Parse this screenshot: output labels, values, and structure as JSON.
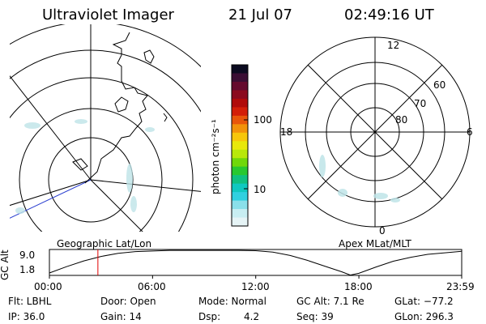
{
  "header": {
    "title": "Ultraviolet Imager",
    "date": "21 Jul 07",
    "time": "02:49:16 UT"
  },
  "colorbar": {
    "label": "photon cm⁻²s⁻¹",
    "ticks": [
      "100",
      "10"
    ],
    "colors": [
      "#0b0b20",
      "#3a0e34",
      "#650a2e",
      "#8b0a1e",
      "#b00a0a",
      "#d31e08",
      "#e8560a",
      "#f2920a",
      "#f7c60a",
      "#e8e80a",
      "#b8e80a",
      "#70d80a",
      "#28c830",
      "#10c080",
      "#10c8c0",
      "#30d0e0",
      "#8ae0ea",
      "#c8eef2",
      "#e6f4f6"
    ]
  },
  "geo_map": {
    "caption": "Geographic Lat/Lon"
  },
  "polar_plot": {
    "caption": "Apex MLat/MLT",
    "mlt_labels": {
      "top": "12",
      "left": "18",
      "right": "6",
      "bottom": "0"
    },
    "lat_labels": [
      "60",
      "70",
      "80"
    ]
  },
  "altitude_strip": {
    "ylabel": "GC Alt",
    "y_ticks": [
      "9.0",
      "1.8"
    ],
    "x_ticks": [
      "00:00",
      "06:00",
      "12:00",
      "18:00",
      "23:59"
    ],
    "marker_color": "#e00000",
    "curve": [
      [
        0.0,
        1.8
      ],
      [
        1.0,
        3.9
      ],
      [
        2.0,
        5.8
      ],
      [
        3.0,
        7.3
      ],
      [
        4.0,
        8.3
      ],
      [
        5.0,
        8.9
      ],
      [
        6.0,
        9.1
      ],
      [
        7.0,
        9.3
      ],
      [
        8.0,
        9.3
      ],
      [
        9.0,
        9.3
      ],
      [
        10.0,
        9.3
      ],
      [
        11.0,
        9.3
      ],
      [
        12.0,
        9.2
      ],
      [
        13.0,
        8.7
      ],
      [
        14.0,
        7.6
      ],
      [
        15.0,
        6.0
      ],
      [
        16.0,
        4.1
      ],
      [
        17.0,
        2.2
      ],
      [
        17.5,
        1.1
      ],
      [
        18.0,
        1.7
      ],
      [
        19.0,
        3.8
      ],
      [
        20.0,
        5.7
      ],
      [
        21.0,
        7.0
      ],
      [
        22.0,
        8.0
      ],
      [
        23.0,
        8.5
      ],
      [
        23.98,
        9.0
      ]
    ],
    "marker_time": 2.82,
    "x_range": [
      0,
      23.98
    ],
    "y_range": [
      1.0,
      9.6
    ]
  },
  "info": {
    "flt": "Flt: LBHL",
    "ip": "IP: 36.0",
    "door": "Door: Open",
    "gain": "Gain: 14",
    "mode": "Mode: Normal",
    "dsp": "Dsp:",
    "dsp_val": "4.2",
    "gc_alt": "GC Alt: 7.1 Re",
    "seq": "Seq: 39",
    "glat": "GLat: −77.2",
    "glon": "GLon: 296.3"
  }
}
